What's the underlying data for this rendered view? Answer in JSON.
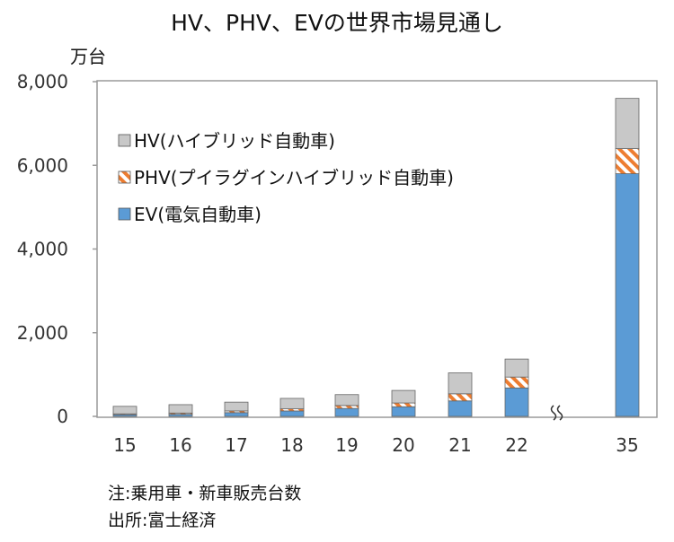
{
  "chart_data": {
    "type": "bar",
    "stacked": true,
    "title": "HV、PHV、EVの世界市場見通し",
    "ylabel": "万台",
    "ylim": [
      0,
      8000
    ],
    "yticks": [
      "0",
      "2,000",
      "4,000",
      "6,000",
      "8,000"
    ],
    "categories": [
      "15",
      "16",
      "17",
      "18",
      "19",
      "20",
      "21",
      "22",
      "35"
    ],
    "axis_break_between": [
      "22",
      "35"
    ],
    "grid": false,
    "legend_position": "top-left",
    "series": [
      {
        "name": "EV(電気自動車)",
        "color": "#5b9bd5",
        "pattern": "solid",
        "values": [
          40,
          50,
          90,
          130,
          190,
          230,
          370,
          680,
          5800
        ]
      },
      {
        "name": "PHV(プイラグインハイブリッド自動車)",
        "color": "#ed7d31",
        "pattern": "hatched",
        "values": [
          20,
          30,
          40,
          50,
          70,
          90,
          170,
          260,
          600
        ]
      },
      {
        "name": "HV(ハイブリッド自動車)",
        "color": "#c8c8c8",
        "pattern": "solid",
        "values": [
          180,
          200,
          210,
          250,
          260,
          300,
          500,
          430,
          1200
        ]
      }
    ],
    "legend_order": [
      2,
      1,
      0
    ]
  },
  "notes": [
    "注:乗用車・新車販売台数",
    "出所:富士経済"
  ]
}
